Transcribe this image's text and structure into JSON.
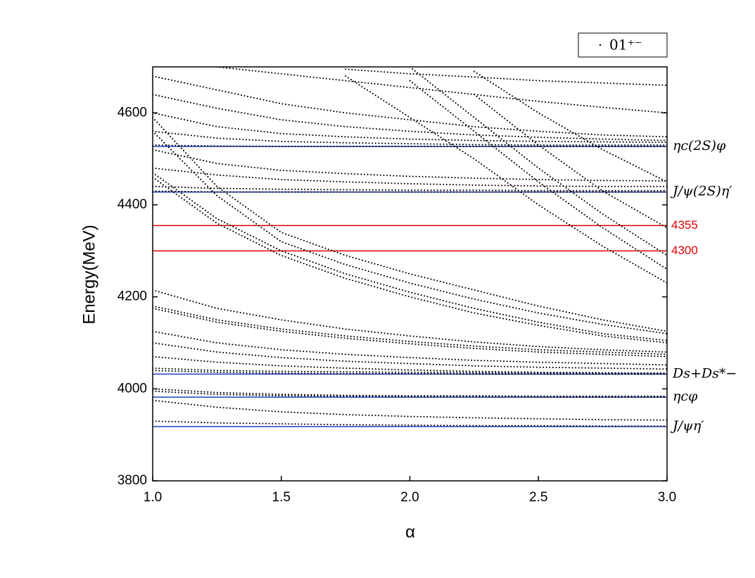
{
  "chart_data": {
    "type": "line",
    "x_label": "α",
    "y_label": "Energy(MeV)",
    "xlim": [
      1.0,
      3.0
    ],
    "ylim": [
      3800,
      4700
    ],
    "xticks": [
      {
        "value": 1.0,
        "label": "1.0"
      },
      {
        "value": 1.5,
        "label": "1.5"
      },
      {
        "value": 2.0,
        "label": "2.0"
      },
      {
        "value": 2.5,
        "label": "2.5"
      },
      {
        "value": 3.0,
        "label": "3.0"
      }
    ],
    "yticks": [
      3800,
      4000,
      4200,
      4400,
      4600
    ],
    "x": [
      1.0,
      1.25,
      1.5,
      1.75,
      2.0,
      2.25,
      2.5,
      2.75,
      3.0
    ],
    "series": [
      {
        "name": "01⁺⁻",
        "color": "#000000",
        "lines": [
          [
            3930,
            3926,
            3924,
            3922,
            3921,
            3920,
            3920,
            3919,
            3919
          ],
          [
            3975,
            3960,
            3950,
            3944,
            3940,
            3937,
            3935,
            3933,
            3932
          ],
          [
            3995,
            3988,
            3985,
            3984,
            3983,
            3983,
            3982,
            3982,
            3982
          ],
          [
            4000,
            3992,
            3988,
            3986,
            3985,
            3985,
            3984,
            3984,
            3984
          ],
          [
            4040,
            4036,
            4034,
            4033,
            4033,
            4032,
            4032,
            4032,
            4032
          ],
          [
            4045,
            4040,
            4038,
            4037,
            4036,
            4035,
            4035,
            4034,
            4034
          ],
          [
            4070,
            4058,
            4050,
            4045,
            4041,
            4038,
            4036,
            4035,
            4034
          ],
          [
            4100,
            4080,
            4068,
            4060,
            4055,
            4050,
            4047,
            4045,
            4043
          ],
          [
            4125,
            4100,
            4085,
            4075,
            4068,
            4062,
            4058,
            4055,
            4052
          ],
          [
            4175,
            4145,
            4125,
            4110,
            4098,
            4088,
            4080,
            4075,
            4070
          ],
          [
            4180,
            4150,
            4130,
            4115,
            4103,
            4093,
            4085,
            4080,
            4075
          ],
          [
            4215,
            4175,
            4150,
            4130,
            4115,
            4102,
            4092,
            4085,
            4080
          ],
          [
            4460,
            4360,
            4290,
            4240,
            4200,
            4165,
            4138,
            4115,
            4100
          ],
          [
            4470,
            4370,
            4300,
            4250,
            4210,
            4175,
            4145,
            4120,
            4105
          ],
          [
            4560,
            4420,
            4320,
            4270,
            4230,
            4195,
            4165,
            4140,
            4120
          ],
          [
            4590,
            4440,
            4340,
            4290,
            4250,
            4215,
            4180,
            4150,
            4125
          ],
          [
            4430,
            4428,
            4428,
            4428,
            4428,
            4428,
            4428,
            4428,
            4428
          ],
          [
            4440,
            4436,
            4434,
            4433,
            4432,
            4432,
            4431,
            4431,
            4431
          ],
          [
            4480,
            4465,
            4455,
            4450,
            4446,
            4443,
            4441,
            4440,
            4440
          ],
          [
            4520,
            4490,
            4475,
            4468,
            4462,
            4458,
            4455,
            4453,
            4452
          ],
          [
            4530,
            4528,
            4527,
            4527,
            4527,
            4527,
            4527,
            4527,
            4527
          ],
          [
            4560,
            4545,
            4538,
            4535,
            4533,
            4531,
            4530,
            4530,
            4530
          ],
          [
            4600,
            4570,
            4555,
            4548,
            4543,
            4540,
            4538,
            4537,
            4536
          ],
          [
            4640,
            4610,
            4585,
            4570,
            4560,
            4552,
            4547,
            4543,
            4540
          ],
          [
            4680,
            4650,
            4620,
            4600,
            4585,
            4570,
            4560,
            4552,
            4548
          ],
          [
            null,
            4700,
            4685,
            4670,
            4655,
            4640,
            4625,
            4612,
            4600
          ],
          [
            null,
            null,
            null,
            4695,
            4685,
            4678,
            4670,
            4665,
            4660
          ],
          [
            null,
            null,
            null,
            4680,
            4590,
            4500,
            4400,
            4310,
            4230
          ],
          [
            null,
            null,
            null,
            null,
            4670,
            4560,
            4450,
            4350,
            4260
          ],
          [
            null,
            null,
            null,
            null,
            4700,
            4590,
            4480,
            4380,
            4290
          ],
          [
            null,
            null,
            null,
            null,
            null,
            4640,
            4530,
            4430,
            4350
          ],
          [
            null,
            null,
            null,
            null,
            null,
            4690,
            4600,
            4520,
            4450
          ]
        ]
      }
    ],
    "thresholds": [
      {
        "value": 4527,
        "label": "ηc(2S)φ",
        "color": "#1f3fbf"
      },
      {
        "value": 4428,
        "label": "J/ψ(2S)η′",
        "color": "#1f3fbf"
      },
      {
        "value": 4355,
        "color": "#e00000"
      },
      {
        "value": 4300,
        "color": "#e00000"
      },
      {
        "value": 4032,
        "label": "Ds+Ds*−",
        "color": "#1f3fbf"
      },
      {
        "value": 3982,
        "label": "ηcφ",
        "color": "#1f3fbf"
      },
      {
        "value": 3918,
        "label": "J/ψη′",
        "color": "#1f3fbf"
      }
    ]
  }
}
